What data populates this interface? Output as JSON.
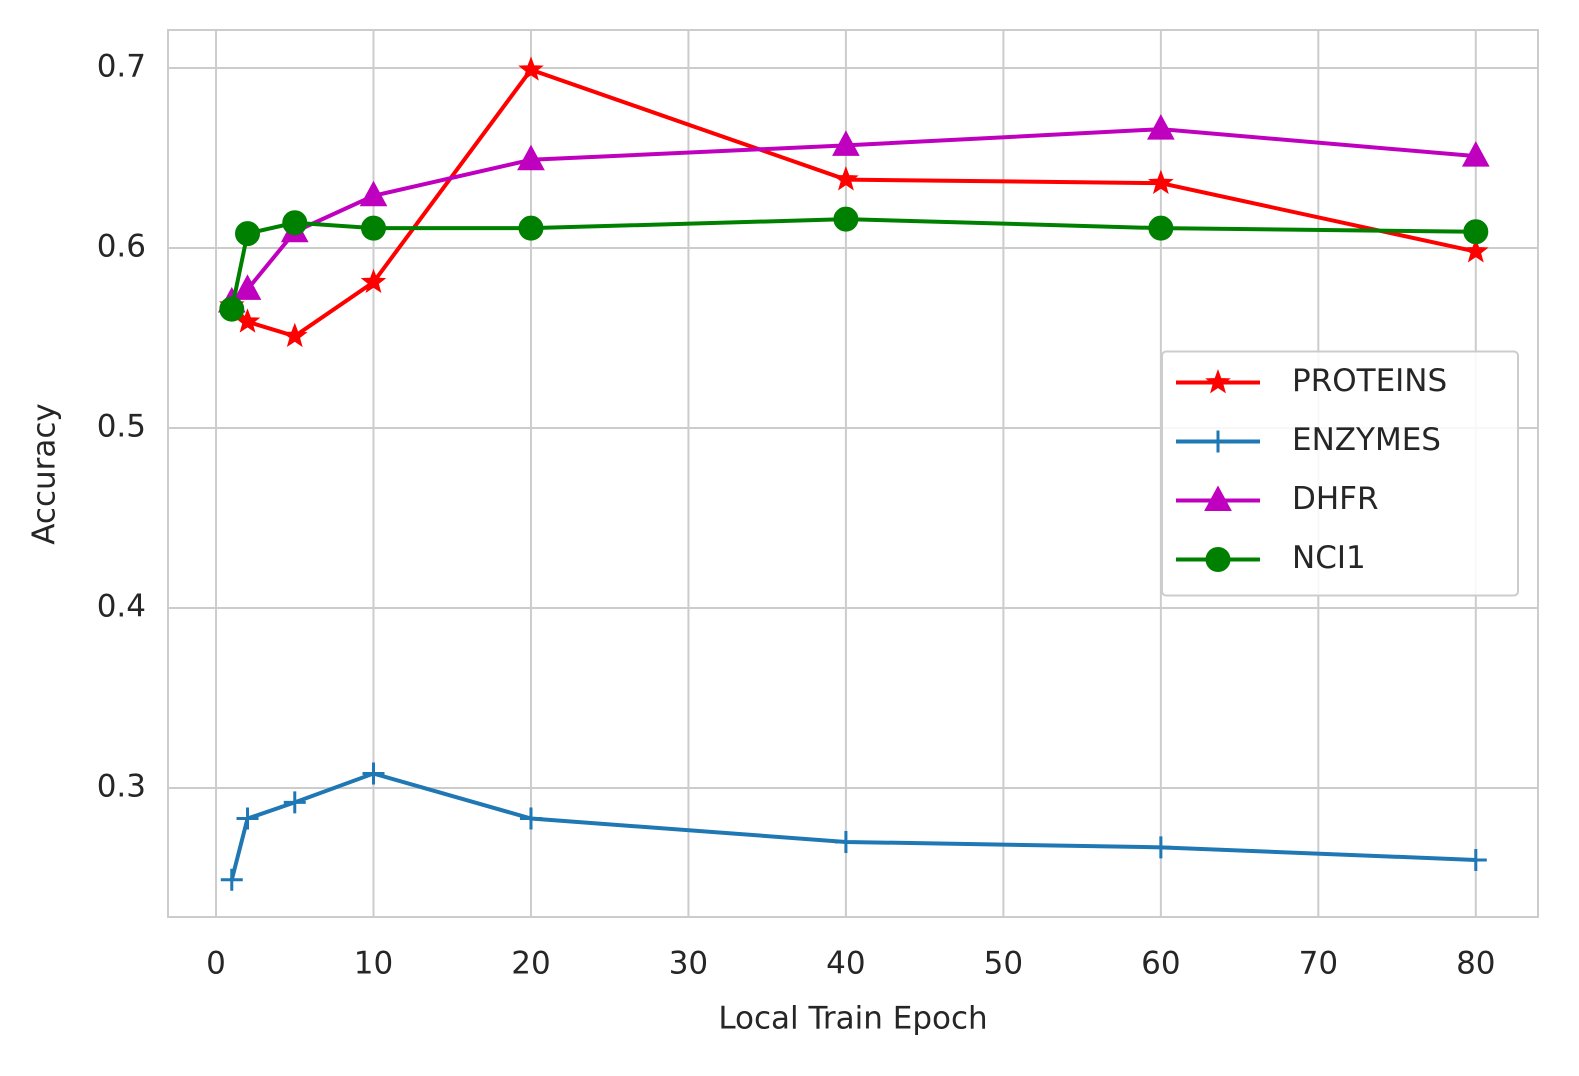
{
  "chart_data": {
    "type": "line",
    "xlabel": "Local Train Epoch",
    "ylabel": "Accuracy",
    "x": [
      1,
      2,
      5,
      10,
      20,
      40,
      60,
      80
    ],
    "series": [
      {
        "name": "PROTEINS",
        "color": "#ff0000",
        "marker": "star",
        "values": [
          0.568,
          0.559,
          0.551,
          0.581,
          0.699,
          0.638,
          0.636,
          0.598
        ]
      },
      {
        "name": "ENZYMES",
        "color": "#1f77b4",
        "marker": "plus",
        "values": [
          0.249,
          0.283,
          0.292,
          0.308,
          0.283,
          0.27,
          0.267,
          0.26
        ]
      },
      {
        "name": "DHFR",
        "color": "#bf00bf",
        "marker": "triangle",
        "values": [
          0.57,
          0.577,
          0.609,
          0.629,
          0.649,
          0.657,
          0.666,
          0.651
        ]
      },
      {
        "name": "NCI1",
        "color": "#008000",
        "marker": "circle",
        "values": [
          0.566,
          0.608,
          0.614,
          0.611,
          0.611,
          0.616,
          0.611,
          0.609
        ]
      }
    ],
    "xlim": [
      -3.05,
      83.95
    ],
    "xticks": [
      0,
      10,
      20,
      30,
      40,
      50,
      60,
      70,
      80
    ],
    "ylim": [
      0.2283,
      0.7211
    ],
    "yticks": [
      0.3,
      0.4,
      0.5,
      0.6,
      0.7
    ],
    "grid": true,
    "legend": "center right"
  }
}
